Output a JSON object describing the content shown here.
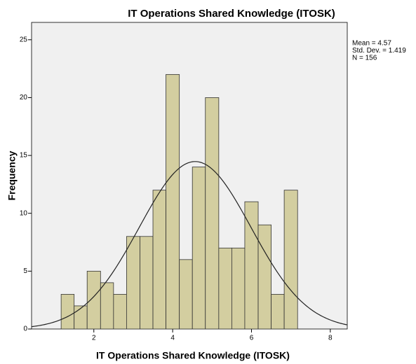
{
  "chart_data": {
    "type": "histogram",
    "title": "IT Operations Shared Knowledge (ITOSK)",
    "x_label": "IT Operations Shared Knowledge (ITOSK)",
    "y_label": "Frequency",
    "bins": [
      1.17,
      1.5,
      1.83,
      2.17,
      2.5,
      2.83,
      3.17,
      3.5,
      3.83,
      4.17,
      4.5,
      4.83,
      5.17,
      5.5,
      5.83,
      6.17,
      6.5,
      6.83,
      7.17
    ],
    "values": [
      3,
      2,
      5,
      4,
      3,
      8,
      8,
      12,
      22,
      6,
      14,
      20,
      7,
      7,
      11,
      9,
      3,
      12
    ],
    "color": "#d3cea0",
    "xlim": [
      0.42,
      8.43
    ],
    "xticks": [
      2,
      4,
      6,
      8
    ],
    "ylim": [
      0,
      26.5
    ],
    "yticks": [
      0,
      5,
      10,
      15,
      20,
      25
    ],
    "annotations": [
      "Mean = 4.57",
      "Std. Dev. = 1.419",
      "N = 156"
    ],
    "normal_curve": {
      "mean": 4.57,
      "sd": 1.419,
      "n": 156
    }
  }
}
